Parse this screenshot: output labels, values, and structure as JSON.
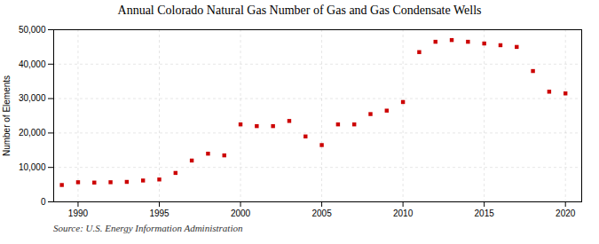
{
  "chart_data": {
    "type": "scatter",
    "title": "Annual Colorado Natural Gas Number of Gas and Gas Condensate Wells",
    "ylabel": "Number of Elements",
    "source": "Source: U.S. Energy Information Administration",
    "x": [
      1989,
      1990,
      1991,
      1992,
      1993,
      1994,
      1995,
      1996,
      1997,
      1998,
      1999,
      2000,
      2001,
      2002,
      2003,
      2004,
      2005,
      2006,
      2007,
      2008,
      2009,
      2010,
      2011,
      2012,
      2013,
      2014,
      2015,
      2016,
      2017,
      2018,
      2019,
      2020
    ],
    "values": [
      4900,
      5700,
      5600,
      5700,
      5800,
      6200,
      6500,
      8400,
      12000,
      14000,
      13500,
      22500,
      22000,
      22000,
      23500,
      19000,
      16500,
      22500,
      22500,
      25500,
      26500,
      29000,
      43500,
      46500,
      47000,
      46500,
      46000,
      45500,
      45000,
      38000,
      32000,
      31500
    ],
    "color": "#cc0000",
    "marker": "square",
    "xlim": [
      1988.5,
      2021
    ],
    "xticks": [
      1990,
      1995,
      2000,
      2005,
      2010,
      2015,
      2020
    ],
    "ylim": [
      0,
      50000
    ],
    "yticks": [
      0,
      {
        "value": 10000,
        "label": "10,000"
      },
      {
        "value": 20000,
        "label": "20,000"
      },
      {
        "value": 30000,
        "label": "30,000"
      },
      {
        "value": 40000,
        "label": "40,000"
      },
      {
        "value": 50000,
        "label": "50,000"
      }
    ],
    "grid": true
  }
}
